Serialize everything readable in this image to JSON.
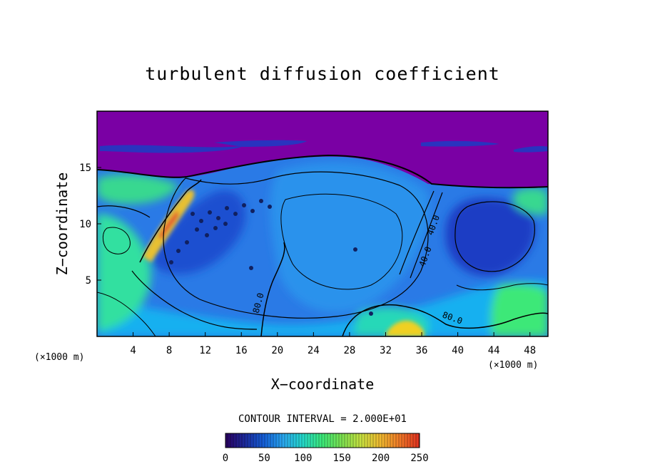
{
  "chart_data": {
    "type": "heatmap",
    "title": "turbulent diffusion coefficient",
    "xlabel": "X−coordinate",
    "ylabel": "Z−coordinate",
    "x_unit_left": "(×1000 m)",
    "x_unit_right": "(×1000 m)",
    "xlim": [
      0,
      50
    ],
    "ylim": [
      0,
      20
    ],
    "x_ticks": [
      4,
      8,
      12,
      16,
      20,
      24,
      28,
      32,
      36,
      40,
      44,
      48
    ],
    "y_ticks": [
      5,
      10,
      15
    ],
    "contour_interval_text": "CONTOUR INTERVAL = 2.000E+01",
    "contour_labels": [
      {
        "text": "80.0",
        "x": 18.2,
        "z": 2.9,
        "angle": -75
      },
      {
        "text": "40.0",
        "x": 37.6,
        "z": 9.8,
        "angle": -70
      },
      {
        "text": "40.0",
        "x": 36.7,
        "z": 7.0,
        "angle": -70
      },
      {
        "text": "80.0",
        "x": 39.3,
        "z": 1.4,
        "angle": 20
      }
    ],
    "colorbar": {
      "min": 0,
      "max": 250,
      "ticks": [
        0,
        50,
        100,
        150,
        200,
        250
      ],
      "colormap": [
        "#2a0060",
        "#1c2a9c",
        "#1560d8",
        "#2aa8ee",
        "#24d8c8",
        "#3ce878",
        "#7ce050",
        "#c8e040",
        "#f0b830",
        "#f07828",
        "#e03020"
      ]
    },
    "field_colors": {
      "upper": "#7a00a4",
      "background": "#2a7ae6",
      "low": "#1c3cc4",
      "mid": "#18b0f0",
      "high": "#30e0a0",
      "veryhigh": "#f0d020"
    }
  }
}
